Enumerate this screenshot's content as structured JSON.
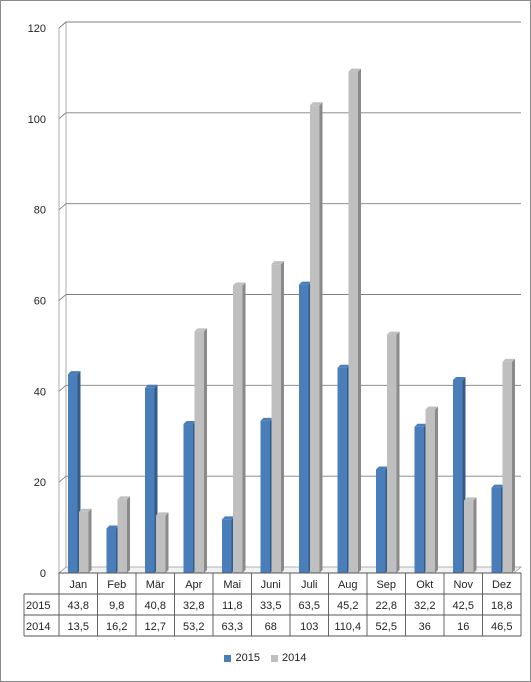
{
  "chart_data": {
    "type": "bar",
    "categories": [
      "Jan",
      "Feb",
      "Mär",
      "Apr",
      "Mai",
      "Juni",
      "Juli",
      "Aug",
      "Sep",
      "Okt",
      "Nov",
      "Dez"
    ],
    "series": [
      {
        "name": "2015",
        "color": "#4a7ebb",
        "values": [
          43.8,
          9.8,
          40.8,
          32.8,
          11.8,
          33.5,
          63.5,
          45.2,
          22.8,
          32.2,
          42.5,
          18.8
        ],
        "labels": [
          "43,8",
          "9,8",
          "40,8",
          "32,8",
          "11,8",
          "33,5",
          "63,5",
          "45,2",
          "22,8",
          "32,2",
          "42,5",
          "18,8"
        ]
      },
      {
        "name": "2014",
        "color": "#bfbfbf",
        "values": [
          13.5,
          16.2,
          12.7,
          53.2,
          63.3,
          68,
          103,
          110.4,
          52.5,
          36,
          16,
          46.5
        ],
        "labels": [
          "13,5",
          "16,2",
          "12,7",
          "53,2",
          "63,3",
          "68",
          "103",
          "110,4",
          "52,5",
          "36",
          "16",
          "46,5"
        ]
      }
    ],
    "ylim": [
      0,
      120
    ],
    "yticks": [
      "0",
      "20",
      "40",
      "60",
      "80",
      "100",
      "120"
    ],
    "grid": true,
    "legend_position": "bottom",
    "data_table": true
  }
}
